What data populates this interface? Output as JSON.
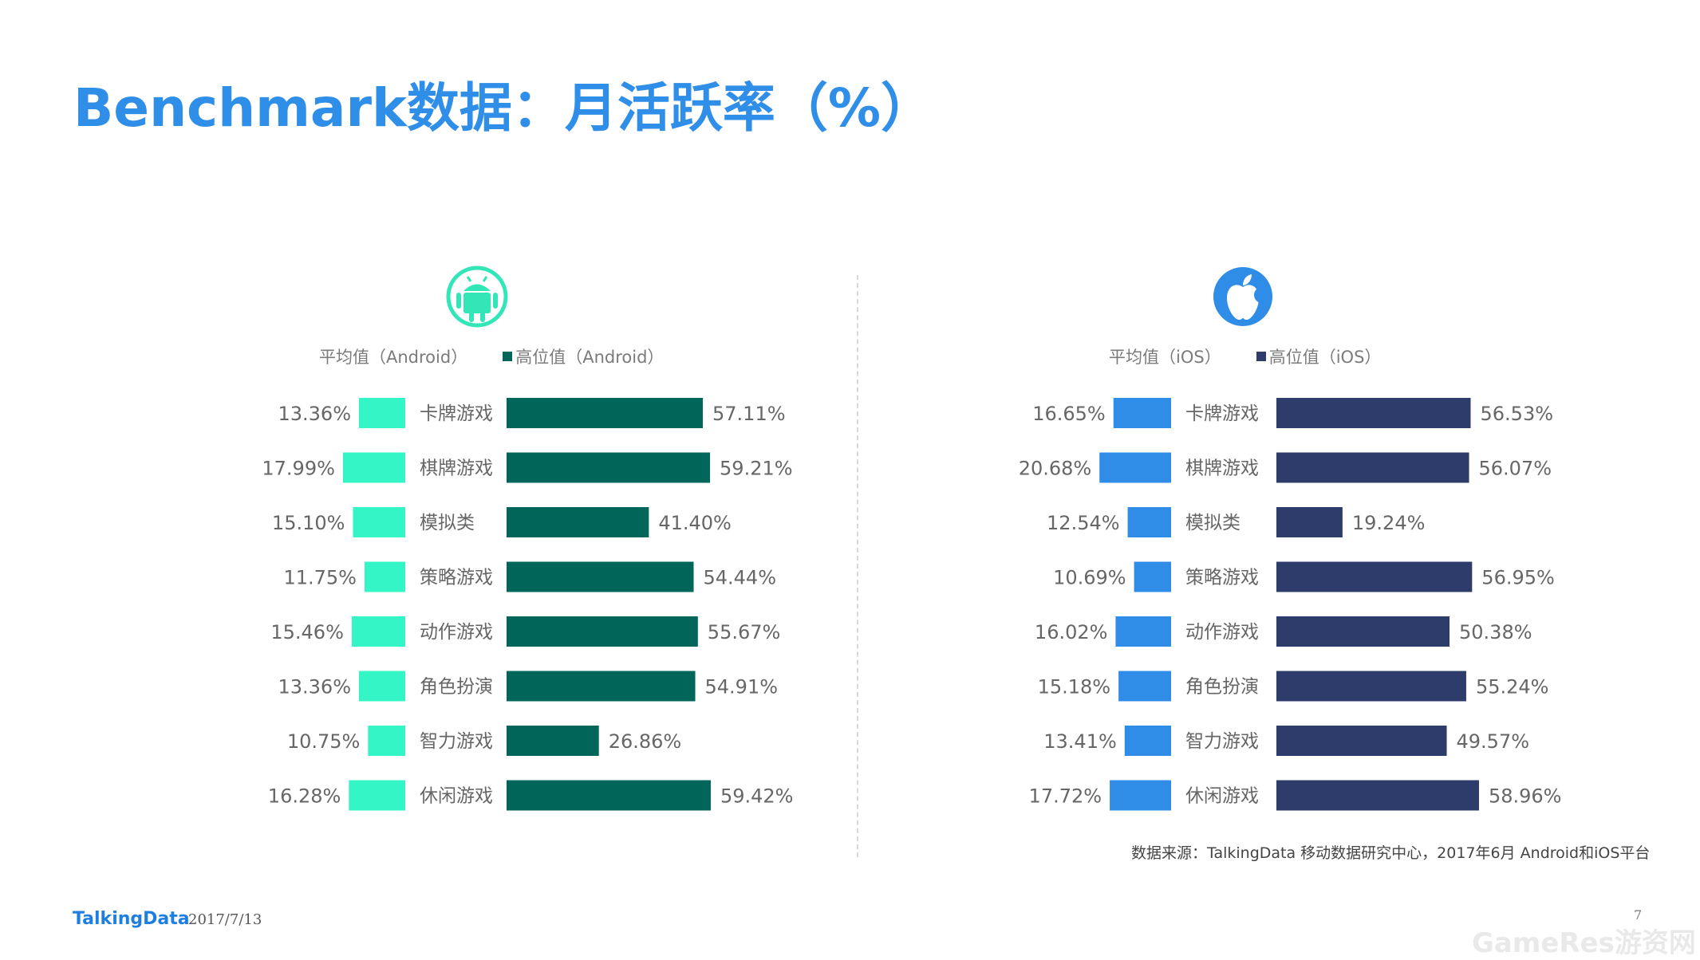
{
  "title": "Benchmark数据：月活跃率（%）",
  "colors": {
    "android_avg": "#33f5c6",
    "android_high": "#00665a",
    "ios_avg": "#2f8de8",
    "ios_high": "#2d3c6a",
    "title": "#2e8ee8",
    "android_logo": "#33e6b8",
    "ios_logo": "#2f8de8"
  },
  "icons": {
    "android": "android-logo-icon",
    "ios": "apple-logo-icon"
  },
  "chart_data": [
    {
      "type": "bar",
      "platform": "Android",
      "categories": [
        "卡牌游戏",
        "棋牌游戏",
        "模拟类",
        "策略游戏",
        "动作游戏",
        "角色扮演",
        "智力游戏",
        "休闲游戏"
      ],
      "series": [
        {
          "name": "平均值（Android）",
          "values": [
            13.36,
            17.99,
            15.1,
            11.75,
            15.46,
            13.36,
            10.75,
            16.28
          ],
          "labels": [
            "13.36%",
            "17.99%",
            "15.10%",
            "11.75%",
            "15.46%",
            "13.36%",
            "10.75%",
            "16.28%"
          ]
        },
        {
          "name": "高位值（Android）",
          "values": [
            57.11,
            59.21,
            41.4,
            54.44,
            55.67,
            54.91,
            26.86,
            59.42
          ],
          "labels": [
            "57.11%",
            "59.21%",
            "41.40%",
            "54.44%",
            "55.67%",
            "54.91%",
            "26.86%",
            "59.42%"
          ]
        }
      ],
      "legend": "top",
      "grid": false
    },
    {
      "type": "bar",
      "platform": "iOS",
      "categories": [
        "卡牌游戏",
        "棋牌游戏",
        "模拟类",
        "策略游戏",
        "动作游戏",
        "角色扮演",
        "智力游戏",
        "休闲游戏"
      ],
      "series": [
        {
          "name": "平均值（iOS）",
          "values": [
            16.65,
            20.68,
            12.54,
            10.69,
            16.02,
            15.18,
            13.41,
            17.72
          ],
          "labels": [
            "16.65%",
            "20.68%",
            "12.54%",
            "10.69%",
            "16.02%",
            "15.18%",
            "13.41%",
            "17.72%"
          ]
        },
        {
          "name": "高位值（iOS）",
          "values": [
            56.53,
            56.07,
            19.24,
            56.95,
            50.38,
            55.24,
            49.57,
            58.96
          ],
          "labels": [
            "56.53%",
            "56.07%",
            "19.24%",
            "56.95%",
            "50.38%",
            "55.24%",
            "49.57%",
            "58.96%"
          ]
        }
      ],
      "legend": "top",
      "grid": false
    }
  ],
  "source": "数据来源：TalkingData 移动数据研究中心，2017年6月 Android和iOS平台",
  "footer": {
    "brand": "TalkingData",
    "date": "2017/7/13",
    "page": "7",
    "watermark": "GameRes游资网"
  }
}
